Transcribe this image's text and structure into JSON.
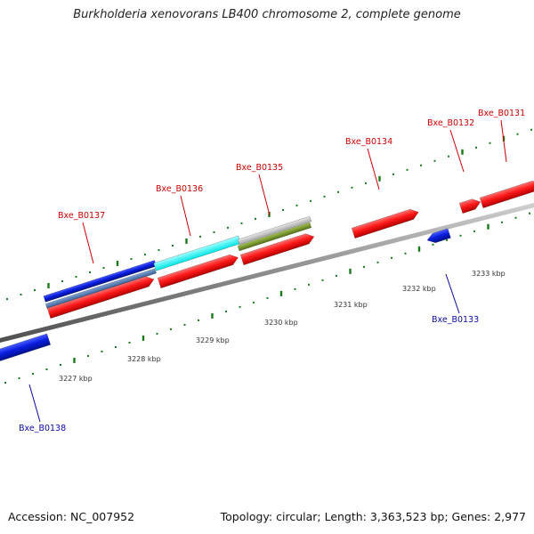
{
  "title": "Burkholderia xenovorans LB400 chromosome 2, complete genome",
  "accession_label": "Accession: NC_007952",
  "topology_label": "Topology: circular; Length: 3,363,523 bp; Genes: 2,977",
  "colors": {
    "forward_gene": "#ff1a1a",
    "reverse_gene": "#0a1ee0",
    "forward_label": "#cc0000",
    "reverse_label": "#0a0aa0",
    "tick": "#1a7a1a",
    "backbone": "#8c8c8c",
    "cyan_feature": "#00ffff",
    "steel_feature": "#4d79b3",
    "grey_feature": "#bdbdbd",
    "olive_feature": "#6b8e23"
  },
  "axis": {
    "unit": "kbp",
    "tick_labels": [
      "3227 kbp",
      "3228 kbp",
      "3229 kbp",
      "3230 kbp",
      "3231 kbp",
      "3232 kbp",
      "3233 kbp"
    ]
  },
  "genes_forward": [
    "Bxe_B0137",
    "Bxe_B0136",
    "Bxe_B0135",
    "Bxe_B0134",
    "Bxe_B0132",
    "Bxe_B0131"
  ],
  "genes_reverse": [
    "Bxe_B0138",
    "Bxe_B0133"
  ]
}
